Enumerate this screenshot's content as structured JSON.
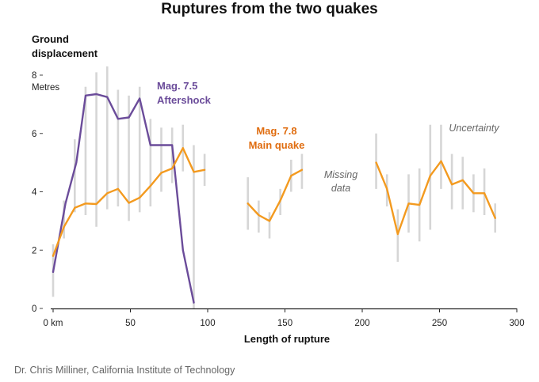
{
  "chart_data": {
    "type": "line",
    "title": "Ruptures from the two quakes",
    "ylabel_lines": [
      "Ground",
      "displacement"
    ],
    "y_unit": "Metres",
    "xlabel": "Length of rupture",
    "x_tick_labels": [
      "0 km",
      "50",
      "100",
      "150",
      "200",
      "250",
      "300"
    ],
    "x_ticks": [
      0,
      50,
      100,
      150,
      200,
      250,
      300
    ],
    "y_ticks": [
      0,
      2,
      4,
      6,
      8
    ],
    "y_tick_labels": [
      "0",
      "2",
      "4",
      "6",
      "8"
    ],
    "xlim": [
      0,
      300
    ],
    "ylim": [
      0,
      8
    ],
    "grid": false,
    "series": [
      {
        "name": "Mag. 7.5 Aftershock",
        "color": "#6b4c9a",
        "segments": [
          [
            [
              0,
              1.25
            ],
            [
              8,
              3.6
            ],
            [
              15,
              5.0
            ],
            [
              21,
              7.3
            ],
            [
              28,
              7.35
            ],
            [
              35,
              7.25
            ],
            [
              42,
              6.5
            ],
            [
              49,
              6.55
            ],
            [
              56,
              7.2
            ],
            [
              63,
              5.6
            ],
            [
              70,
              5.6
            ],
            [
              77,
              5.6
            ],
            [
              84,
              2.0
            ],
            [
              91,
              0.2
            ]
          ]
        ]
      },
      {
        "name": "Mag. 7.8 Main quake",
        "color": "#f39a1f",
        "segments": [
          [
            [
              0,
              1.8
            ],
            [
              7,
              2.8
            ],
            [
              14,
              3.45
            ],
            [
              21,
              3.6
            ],
            [
              28,
              3.58
            ],
            [
              35,
              3.95
            ],
            [
              42,
              4.1
            ],
            [
              49,
              3.62
            ],
            [
              56,
              3.8
            ],
            [
              63,
              4.2
            ],
            [
              70,
              4.65
            ],
            [
              77,
              4.8
            ],
            [
              84,
              5.5
            ],
            [
              91,
              4.68
            ],
            [
              98,
              4.75
            ]
          ],
          [
            [
              126,
              3.6
            ],
            [
              133,
              3.2
            ],
            [
              140,
              3.0
            ],
            [
              147,
              3.7
            ],
            [
              154,
              4.55
            ],
            [
              161,
              4.75
            ]
          ],
          [
            [
              209,
              5.0
            ],
            [
              216,
              4.1
            ],
            [
              223,
              2.55
            ],
            [
              230,
              3.6
            ],
            [
              237,
              3.55
            ],
            [
              244,
              4.55
            ],
            [
              251,
              5.05
            ],
            [
              258,
              4.25
            ],
            [
              265,
              4.4
            ],
            [
              272,
              3.95
            ],
            [
              279,
              3.95
            ],
            [
              286,
              3.1
            ]
          ]
        ]
      }
    ],
    "uncertainty": [
      {
        "x": 0,
        "low": 0.4,
        "high": 2.2
      },
      {
        "x": 7,
        "low": 2.4,
        "high": 3.7
      },
      {
        "x": 14,
        "low": 3.3,
        "high": 5.8
      },
      {
        "x": 21,
        "low": 3.2,
        "high": 7.6
      },
      {
        "x": 28,
        "low": 2.8,
        "high": 8.1
      },
      {
        "x": 35,
        "low": 3.4,
        "high": 8.3
      },
      {
        "x": 42,
        "low": 3.5,
        "high": 7.5
      },
      {
        "x": 49,
        "low": 3.0,
        "high": 7.3
      },
      {
        "x": 56,
        "low": 3.3,
        "high": 7.6
      },
      {
        "x": 63,
        "low": 3.5,
        "high": 6.5
      },
      {
        "x": 70,
        "low": 4.0,
        "high": 6.2
      },
      {
        "x": 77,
        "low": 4.3,
        "high": 6.2
      },
      {
        "x": 84,
        "low": 4.7,
        "high": 6.3
      },
      {
        "x": 91,
        "low": 0.0,
        "high": 5.6
      },
      {
        "x": 98,
        "low": 4.2,
        "high": 5.3
      },
      {
        "x": 126,
        "low": 2.7,
        "high": 4.5
      },
      {
        "x": 133,
        "low": 2.6,
        "high": 3.7
      },
      {
        "x": 140,
        "low": 2.4,
        "high": 3.3
      },
      {
        "x": 147,
        "low": 3.2,
        "high": 4.1
      },
      {
        "x": 154,
        "low": 4.0,
        "high": 5.1
      },
      {
        "x": 161,
        "low": 4.1,
        "high": 5.3
      },
      {
        "x": 209,
        "low": 4.1,
        "high": 6.0
      },
      {
        "x": 216,
        "low": 3.5,
        "high": 4.6
      },
      {
        "x": 223,
        "low": 1.6,
        "high": 3.4
      },
      {
        "x": 230,
        "low": 2.6,
        "high": 4.6
      },
      {
        "x": 237,
        "low": 2.3,
        "high": 4.8
      },
      {
        "x": 244,
        "low": 2.7,
        "high": 6.3
      },
      {
        "x": 251,
        "low": 4.1,
        "high": 6.3
      },
      {
        "x": 258,
        "low": 3.4,
        "high": 5.3
      },
      {
        "x": 265,
        "low": 3.4,
        "high": 5.2
      },
      {
        "x": 272,
        "low": 3.3,
        "high": 4.6
      },
      {
        "x": 279,
        "low": 3.2,
        "high": 4.8
      },
      {
        "x": 286,
        "low": 2.6,
        "high": 3.6
      }
    ],
    "annotations": {
      "aftershock": [
        "Mag. 7.5",
        "Aftershock"
      ],
      "main": [
        "Mag. 7.8",
        "Main quake"
      ],
      "missing": [
        "Missing",
        "data"
      ],
      "uncertainty": "Uncertainty"
    }
  },
  "source": "Dr. Chris Milliner, California Institute of Technology"
}
